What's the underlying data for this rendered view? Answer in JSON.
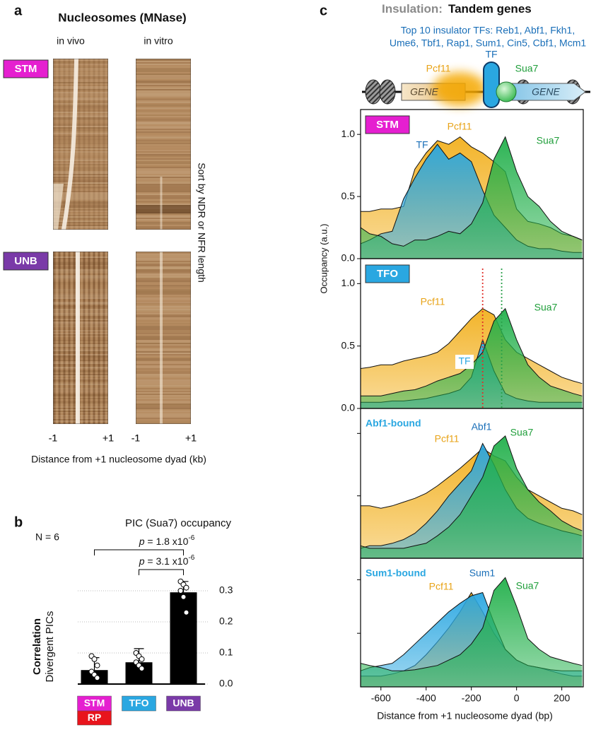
{
  "panel_labels": [
    "a",
    "b",
    "c"
  ],
  "panel_a": {
    "title": "Nucleosomes (MNase)",
    "columns": [
      "in vivo",
      "in vitro"
    ],
    "rows": [
      "STM",
      "UNB"
    ],
    "row_colors": [
      "#e51fd0",
      "#7a3aa8"
    ],
    "side_label": "Sort by NDR or NFR length",
    "xticks": [
      -1,
      {
        "value": 1,
        "label": "+1"
      }
    ],
    "xlabel": "Distance from +1 nucleosome dyad (kb)"
  },
  "panel_c_header": {
    "title_gray": "Insulation:",
    "title": "Tandem genes",
    "subtitle_lines": [
      "Top 10 insulator TFs:  Reb1, Abf1, Fkh1,",
      "Ume6, Tbf1, Rap1, Sum1, Cin5, Cbf1, Mcm1"
    ],
    "diagram_labels": {
      "pcf11": "Pcf11",
      "tf": "TF",
      "sua7": "Sua7",
      "gene": "GENE"
    }
  },
  "chart_data": [
    {
      "type": "bar",
      "title": "PIC (Sua7) occupancy",
      "note": "N = 6",
      "ylabel": [
        "Correlation",
        "Divergent PICs"
      ],
      "categories": [
        "STM",
        "TFO",
        "UNB"
      ],
      "category_colors": [
        "#e51fd0",
        "#2aa7e1",
        "#7a3aa8"
      ],
      "sublabel": "RP",
      "sublabel_color": "#e8141c",
      "values": [
        0.045,
        0.07,
        0.295
      ],
      "errors": [
        0.04,
        0.044,
        0.035
      ],
      "points": [
        [
          0.09,
          0.08,
          0.06,
          0.04,
          0.03,
          0.02
        ],
        [
          0.1,
          0.09,
          0.08,
          0.07,
          0.06,
          0.05
        ],
        [
          0.33,
          0.32,
          0.31,
          0.3,
          0.28,
          0.23
        ]
      ],
      "color": "#000000",
      "ylim": [
        0,
        0.32
      ],
      "yticks": [
        {
          "value": 0,
          "label": "0.0"
        },
        0.1,
        0.2,
        0.3
      ],
      "grid": true,
      "annotations": [
        {
          "p": "p",
          "text": " = 1.8 x10",
          "exponent": "-6"
        },
        {
          "p": "p",
          "text": " = 3.1 x10",
          "exponent": "-6"
        }
      ]
    },
    {
      "type": "area",
      "title": "STM",
      "title_style": "box",
      "title_color": "#e51fd0",
      "ylabel": "Occupancy (a.u.)",
      "x": [
        -690,
        -650,
        -600,
        -550,
        -500,
        -450,
        -400,
        -350,
        -300,
        -250,
        -200,
        -150,
        -100,
        -50,
        0,
        50,
        100,
        150,
        200,
        250,
        290
      ],
      "xlim": [
        -690,
        295
      ],
      "ylim": [
        0,
        1.2
      ],
      "yticks": [
        {
          "value": 0,
          "label": "0.0"
        },
        0.5,
        {
          "value": 1,
          "label": "1.0"
        }
      ],
      "series": [
        {
          "name": "Pcf11",
          "color": "#f2b01e",
          "label_color": "#e8a317",
          "values": [
            0.38,
            0.38,
            0.4,
            0.4,
            0.42,
            0.72,
            0.85,
            0.95,
            0.92,
            0.98,
            0.9,
            0.85,
            0.78,
            0.7,
            0.4,
            0.3,
            0.28,
            0.25,
            0.2,
            0.18,
            0.15
          ]
        },
        {
          "name": "TF",
          "color": "#2aa7e1",
          "label_color": "#1a6fb8",
          "values": [
            0.12,
            0.15,
            0.2,
            0.22,
            0.48,
            0.65,
            0.8,
            0.92,
            0.8,
            0.85,
            0.78,
            0.55,
            0.35,
            0.25,
            0.15,
            0.1,
            0.08,
            0.08,
            0.06,
            0.05,
            0.05
          ]
        },
        {
          "name": "Sua7",
          "color": "#22b04b",
          "label_color": "#1f9e3a",
          "values": [
            0.25,
            0.2,
            0.18,
            0.12,
            0.1,
            0.15,
            0.15,
            0.18,
            0.22,
            0.2,
            0.28,
            0.45,
            0.8,
            0.98,
            0.7,
            0.5,
            0.42,
            0.3,
            0.22,
            0.18,
            0.15
          ]
        }
      ]
    },
    {
      "type": "area",
      "title": "TFO",
      "title_style": "box",
      "title_color": "#2aa7e1",
      "x": [
        -690,
        -650,
        -600,
        -550,
        -500,
        -450,
        -400,
        -350,
        -300,
        -250,
        -200,
        -150,
        -100,
        -50,
        0,
        50,
        100,
        150,
        200,
        250,
        290
      ],
      "xlim": [
        -690,
        295
      ],
      "ylim": [
        0,
        1.2
      ],
      "yticks": [
        {
          "value": 0,
          "label": "0.0"
        },
        0.5,
        {
          "value": 1,
          "label": "1.0"
        }
      ],
      "vlines": [
        {
          "x": -150,
          "color": "#e0302a"
        },
        {
          "x": -66,
          "color": "#2aa04a"
        }
      ],
      "series": [
        {
          "name": "Pcf11",
          "color": "#f2b01e",
          "label_color": "#e8a317",
          "values": [
            0.32,
            0.33,
            0.35,
            0.35,
            0.38,
            0.4,
            0.42,
            0.45,
            0.52,
            0.62,
            0.72,
            0.8,
            0.75,
            0.55,
            0.45,
            0.4,
            0.35,
            0.3,
            0.25,
            0.22,
            0.2
          ]
        },
        {
          "name": "TF",
          "color": "#2aa7e1",
          "label_color": "#2aa7e1",
          "values": [
            0.05,
            0.05,
            0.05,
            0.06,
            0.06,
            0.07,
            0.08,
            0.1,
            0.12,
            0.15,
            0.25,
            0.55,
            0.3,
            0.12,
            0.08,
            0.06,
            0.05,
            0.05,
            0.05,
            0.05,
            0.05
          ]
        },
        {
          "name": "Sua7",
          "color": "#22b04b",
          "label_color": "#1f9e3a",
          "values": [
            0.1,
            0.1,
            0.1,
            0.12,
            0.14,
            0.15,
            0.18,
            0.22,
            0.25,
            0.28,
            0.35,
            0.45,
            0.7,
            0.8,
            0.55,
            0.35,
            0.25,
            0.18,
            0.15,
            0.12,
            0.1
          ]
        }
      ]
    },
    {
      "type": "area",
      "title": "Abf1-bound",
      "title_style": "text",
      "title_color": "#2aa7e1",
      "x": [
        -690,
        -650,
        -600,
        -550,
        -500,
        -450,
        -400,
        -350,
        -300,
        -250,
        -200,
        -150,
        -100,
        -50,
        0,
        50,
        100,
        150,
        200,
        250,
        290
      ],
      "xlim": [
        -690,
        295
      ],
      "ylim": [
        0,
        1.2
      ],
      "ytick_marks": [
        0.5,
        1
      ],
      "series": [
        {
          "name": "Pcf11",
          "color": "#f2b01e",
          "label_color": "#e8a317",
          "values": [
            0.42,
            0.42,
            0.4,
            0.42,
            0.45,
            0.48,
            0.52,
            0.58,
            0.65,
            0.72,
            0.8,
            0.88,
            0.82,
            0.78,
            0.65,
            0.55,
            0.5,
            0.45,
            0.4,
            0.38,
            0.35
          ]
        },
        {
          "name": "Abf1",
          "color": "#2aa7e1",
          "label_color": "#1a6fb8",
          "values": [
            0.08,
            0.1,
            0.1,
            0.12,
            0.15,
            0.2,
            0.28,
            0.38,
            0.5,
            0.6,
            0.7,
            0.92,
            0.75,
            0.55,
            0.4,
            0.32,
            0.28,
            0.25,
            0.22,
            0.2,
            0.18
          ]
        },
        {
          "name": "Sua7",
          "color": "#22b04b",
          "label_color": "#1f9e3a",
          "values": [
            0.1,
            0.08,
            0.08,
            0.08,
            0.08,
            0.1,
            0.12,
            0.18,
            0.25,
            0.35,
            0.5,
            0.65,
            0.9,
            0.98,
            0.72,
            0.55,
            0.45,
            0.38,
            0.3,
            0.25,
            0.22
          ]
        }
      ]
    },
    {
      "type": "area",
      "title": "Sum1-bound",
      "title_style": "text",
      "title_color": "#2aa7e1",
      "xlabel": "Distance from +1 nucleosome dyad (bp)",
      "x": [
        -690,
        -650,
        -600,
        -550,
        -500,
        -450,
        -400,
        -350,
        -300,
        -250,
        -200,
        -150,
        -100,
        -50,
        0,
        50,
        100,
        150,
        200,
        250,
        290
      ],
      "xlim": [
        -690,
        295
      ],
      "xticks": [
        -600,
        -400,
        -200,
        0,
        200
      ],
      "ylim": [
        0,
        1.2
      ],
      "ytick_marks": [
        0.5,
        1
      ],
      "series": [
        {
          "name": "Pcf11",
          "color": "#f2b01e",
          "label_color": "#e8a317",
          "values": [
            0.1,
            0.1,
            0.1,
            0.12,
            0.15,
            0.2,
            0.3,
            0.42,
            0.55,
            0.7,
            0.88,
            0.7,
            0.5,
            0.35,
            0.25,
            0.2,
            0.18,
            0.15,
            0.12,
            0.1,
            0.1
          ]
        },
        {
          "name": "Sum1",
          "color": "#2aa7e1",
          "label_color": "#1a6fb8",
          "values": [
            0.15,
            0.18,
            0.2,
            0.22,
            0.3,
            0.4,
            0.5,
            0.6,
            0.7,
            0.78,
            0.85,
            0.88,
            0.6,
            0.35,
            0.25,
            0.2,
            0.18,
            0.16,
            0.15,
            0.15,
            0.15
          ]
        },
        {
          "name": "Sua7",
          "color": "#22b04b",
          "label_color": "#1f9e3a",
          "values": [
            0.22,
            0.2,
            0.18,
            0.15,
            0.15,
            0.16,
            0.18,
            0.2,
            0.25,
            0.3,
            0.4,
            0.55,
            0.9,
            1.02,
            0.75,
            0.45,
            0.35,
            0.28,
            0.25,
            0.22,
            0.2
          ]
        }
      ]
    }
  ]
}
